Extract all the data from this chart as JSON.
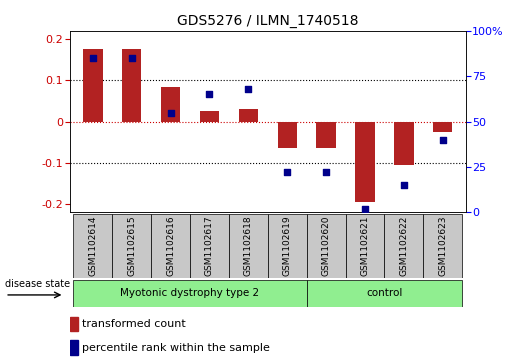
{
  "title": "GDS5276 / ILMN_1740518",
  "samples": [
    "GSM1102614",
    "GSM1102615",
    "GSM1102616",
    "GSM1102617",
    "GSM1102618",
    "GSM1102619",
    "GSM1102620",
    "GSM1102621",
    "GSM1102622",
    "GSM1102623"
  ],
  "transformed_count": [
    0.175,
    0.175,
    0.085,
    0.025,
    0.03,
    -0.065,
    -0.065,
    -0.195,
    -0.105,
    -0.025
  ],
  "percentile_rank": [
    85,
    85,
    55,
    65,
    68,
    22,
    22,
    2,
    15,
    40
  ],
  "group1_label": "Myotonic dystrophy type 2",
  "group1_count": 6,
  "group2_label": "control",
  "group2_count": 4,
  "group_color": "#90EE90",
  "ylim_left": [
    -0.22,
    0.22
  ],
  "ylim_right": [
    0,
    100
  ],
  "yticks_left": [
    -0.2,
    -0.1,
    0.0,
    0.1,
    0.2
  ],
  "yticks_right": [
    0,
    25,
    50,
    75,
    100
  ],
  "ytick_right_labels": [
    "0",
    "25",
    "50",
    "75",
    "100%"
  ],
  "bar_color": "#B22222",
  "dot_color": "#00008B",
  "hline0_color": "#CC0000",
  "grid_color": "#000000",
  "bg_color": "#FFFFFF",
  "sample_bg": "#C8C8C8",
  "disease_state_label": "disease state",
  "legend_bar_label": "transformed count",
  "legend_dot_label": "percentile rank within the sample",
  "bar_width": 0.5,
  "dot_size": 20,
  "title_fontsize": 10,
  "tick_fontsize": 8,
  "label_fontsize": 7.5,
  "legend_fontsize": 8
}
